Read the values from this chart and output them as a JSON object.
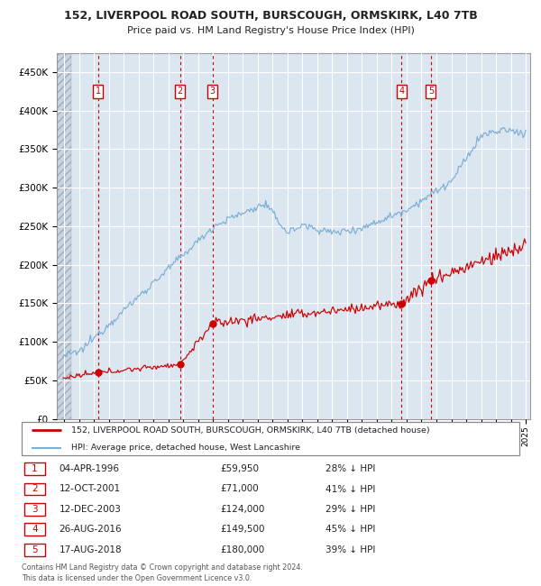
{
  "title": "152, LIVERPOOL ROAD SOUTH, BURSCOUGH, ORMSKIRK, L40 7TB",
  "subtitle": "Price paid vs. HM Land Registry's House Price Index (HPI)",
  "ylim": [
    0,
    475000
  ],
  "yticks": [
    0,
    50000,
    100000,
    150000,
    200000,
    250000,
    300000,
    350000,
    400000,
    450000
  ],
  "x_start_year": 1994,
  "x_end_year": 2025,
  "sale_color": "#cc0000",
  "hpi_color": "#7bafd4",
  "plot_bg": "#dce6f1",
  "legend_items": [
    "152, LIVERPOOL ROAD SOUTH, BURSCOUGH, ORMSKIRK, L40 7TB (detached house)",
    "HPI: Average price, detached house, West Lancashire"
  ],
  "sale_dates": [
    1996.27,
    2001.78,
    2003.95,
    2016.65,
    2018.63
  ],
  "sale_prices": [
    59950,
    71000,
    124000,
    149500,
    180000
  ],
  "sale_labels": [
    "1",
    "2",
    "3",
    "4",
    "5"
  ],
  "vline_dates": [
    1996.27,
    2001.78,
    2003.95,
    2016.65,
    2018.63
  ],
  "table_data": [
    [
      "1",
      "04-APR-1996",
      "£59,950",
      "28% ↓ HPI"
    ],
    [
      "2",
      "12-OCT-2001",
      "£71,000",
      "41% ↓ HPI"
    ],
    [
      "3",
      "12-DEC-2003",
      "£124,000",
      "29% ↓ HPI"
    ],
    [
      "4",
      "26-AUG-2016",
      "£149,500",
      "45% ↓ HPI"
    ],
    [
      "5",
      "17-AUG-2018",
      "£180,000",
      "39% ↓ HPI"
    ]
  ],
  "footnote": "Contains HM Land Registry data © Crown copyright and database right 2024.\nThis data is licensed under the Open Government Licence v3.0.",
  "hatch_color": "#b0bcc8"
}
